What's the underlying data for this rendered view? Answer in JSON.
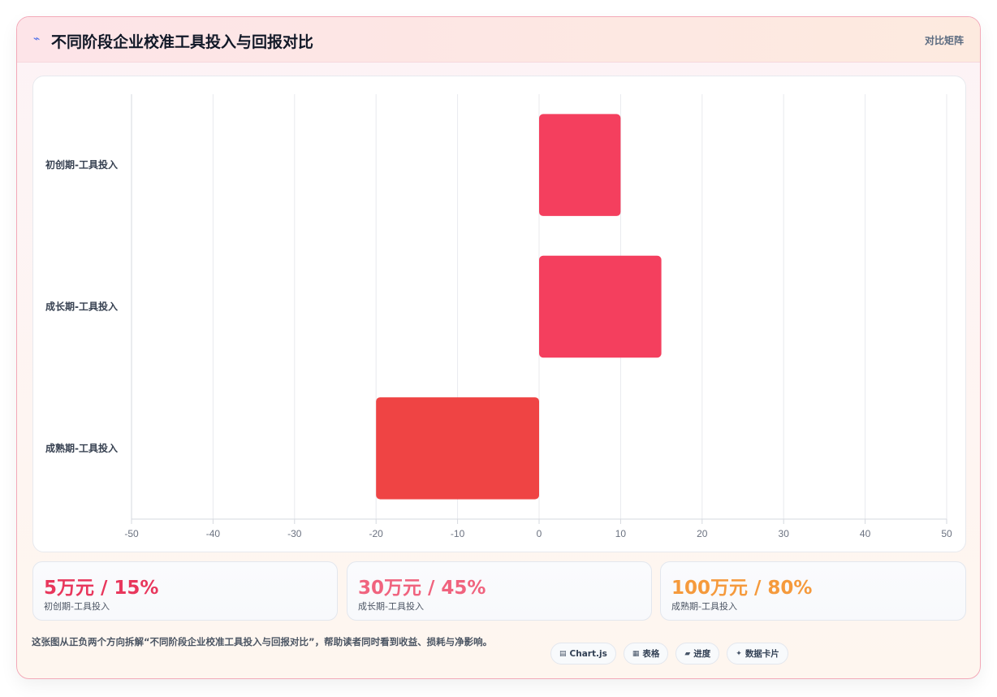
{
  "header": {
    "icon": "chart-trend-icon",
    "title": "不同阶段企业校准工具投入与回报对比",
    "badge": "对比矩阵"
  },
  "chart_data": {
    "type": "bar",
    "orientation": "horizontal",
    "categories": [
      "初创期-工具投入",
      "成长期-工具投入",
      "成熟期-工具投入"
    ],
    "values": [
      10,
      15,
      -20
    ],
    "colors": [
      "#f43f5e",
      "#f43f5e",
      "#ef4444"
    ],
    "xlim": [
      -50,
      50
    ],
    "xticks": [
      -50,
      -40,
      -30,
      -20,
      -10,
      0,
      10,
      20,
      30,
      40,
      50
    ],
    "grid": true,
    "legend": "none"
  },
  "kpis": [
    {
      "value": "5万元 / 15%",
      "label": "初创期-工具投入",
      "color": "#e8375c"
    },
    {
      "value": "30万元 / 45%",
      "label": "成长期-工具投入",
      "color": "#f0637e"
    },
    {
      "value": "100万元 / 80%",
      "label": "成熟期-工具投入",
      "color": "#f59a3c"
    }
  ],
  "footnote": "这张图从正负两个方向拆解“不同阶段企业校准工具投入与回报对比”，帮助读者同时看到收益、损耗与净影响。",
  "chips": [
    {
      "icon": "▤",
      "label": "Chart.js"
    },
    {
      "icon": "▦",
      "label": "表格"
    },
    {
      "icon": "▰",
      "label": "进度"
    },
    {
      "icon": "✦",
      "label": "数据卡片"
    }
  ]
}
